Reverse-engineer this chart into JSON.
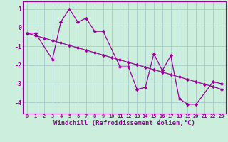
{
  "zigzag_x": [
    0,
    1,
    3,
    4,
    5,
    6,
    7,
    8,
    9,
    11,
    12,
    13,
    14,
    15,
    16,
    17,
    18,
    19,
    20,
    22,
    23
  ],
  "zigzag_y": [
    -0.3,
    -0.3,
    -1.7,
    0.3,
    1.0,
    0.3,
    0.5,
    -0.2,
    -0.2,
    -2.1,
    -2.1,
    -3.3,
    -3.2,
    -1.4,
    -2.3,
    -1.5,
    -3.8,
    -4.1,
    -4.1,
    -2.9,
    -3.0
  ],
  "trend_x": [
    0,
    1,
    2,
    3,
    4,
    5,
    6,
    7,
    8,
    9,
    10,
    11,
    12,
    13,
    14,
    15,
    16,
    17,
    18,
    19,
    20,
    21,
    22,
    23
  ],
  "trend_y": [
    -0.3,
    -0.43,
    -0.56,
    -0.69,
    -0.82,
    -0.95,
    -1.08,
    -1.21,
    -1.34,
    -1.47,
    -1.6,
    -1.73,
    -1.86,
    -1.99,
    -2.12,
    -2.25,
    -2.38,
    -2.51,
    -2.64,
    -2.77,
    -2.9,
    -3.03,
    -3.16,
    -3.3
  ],
  "line_color": "#990099",
  "bg_color": "#cceedd",
  "grid_color": "#aacccc",
  "xlabel": "Windchill (Refroidissement éolien,°C)",
  "ylim": [
    -4.6,
    1.4
  ],
  "xlim": [
    -0.5,
    23.5
  ],
  "yticks": [
    -4,
    -3,
    -2,
    -1,
    0,
    1
  ],
  "xticks": [
    0,
    1,
    2,
    3,
    4,
    5,
    6,
    7,
    8,
    9,
    10,
    11,
    12,
    13,
    14,
    15,
    16,
    17,
    18,
    19,
    20,
    21,
    22,
    23
  ]
}
